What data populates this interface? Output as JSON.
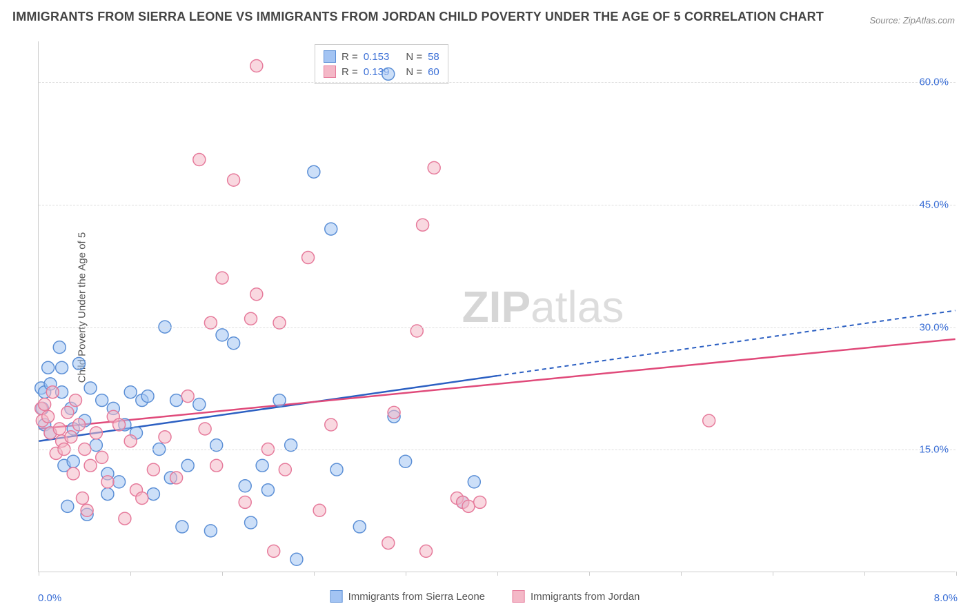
{
  "title": "IMMIGRANTS FROM SIERRA LEONE VS IMMIGRANTS FROM JORDAN CHILD POVERTY UNDER THE AGE OF 5 CORRELATION CHART",
  "source": "Source: ZipAtlas.com",
  "watermark_bold": "ZIP",
  "watermark_light": "atlas",
  "chart": {
    "type": "scatter-with-regression",
    "y_axis_label": "Child Poverty Under the Age of 5",
    "x_range": [
      0.0,
      8.0
    ],
    "y_range": [
      0.0,
      65.0
    ],
    "y_ticks": [
      {
        "val": 15.0,
        "label": "15.0%"
      },
      {
        "val": 30.0,
        "label": "30.0%"
      },
      {
        "val": 45.0,
        "label": "45.0%"
      },
      {
        "val": 60.0,
        "label": "60.0%"
      }
    ],
    "x_tick_positions": [
      0.0,
      0.8,
      1.6,
      2.4,
      3.2,
      4.0,
      4.8,
      5.6,
      6.4,
      7.2,
      8.0
    ],
    "x_labels": [
      {
        "val": 0.0,
        "label": "0.0%"
      },
      {
        "val": 8.0,
        "label": "8.0%"
      }
    ],
    "grid_color": "#dddddd",
    "background_color": "#ffffff",
    "marker_radius": 9,
    "marker_opacity": 0.55,
    "series": [
      {
        "name": "Immigrants from Sierra Leone",
        "fill": "#a3c4f3",
        "stroke": "#5b8fd6",
        "line_color": "#2b5fc2",
        "r_label": "R =",
        "r_value": "0.153",
        "n_label": "N =",
        "n_value": "58",
        "regression": {
          "x1": 0.0,
          "y1": 16.0,
          "x2": 4.0,
          "y2": 24.0,
          "x_dash_end": 8.0,
          "y_dash_end": 32.0
        },
        "points": [
          [
            0.02,
            22.5
          ],
          [
            0.03,
            20.0
          ],
          [
            0.05,
            22.0
          ],
          [
            0.05,
            18.0
          ],
          [
            0.08,
            25.0
          ],
          [
            0.1,
            23.0
          ],
          [
            0.1,
            17.0
          ],
          [
            0.18,
            27.5
          ],
          [
            0.2,
            25.0
          ],
          [
            0.2,
            22.0
          ],
          [
            0.22,
            13.0
          ],
          [
            0.25,
            8.0
          ],
          [
            0.28,
            20.0
          ],
          [
            0.3,
            17.5
          ],
          [
            0.3,
            13.5
          ],
          [
            0.35,
            25.5
          ],
          [
            0.4,
            18.5
          ],
          [
            0.42,
            7.0
          ],
          [
            0.45,
            22.5
          ],
          [
            0.5,
            15.5
          ],
          [
            0.55,
            21.0
          ],
          [
            0.6,
            9.5
          ],
          [
            0.6,
            12.0
          ],
          [
            0.65,
            20.0
          ],
          [
            0.7,
            11.0
          ],
          [
            0.75,
            18.0
          ],
          [
            0.8,
            22.0
          ],
          [
            0.85,
            17.0
          ],
          [
            0.9,
            21.0
          ],
          [
            0.95,
            21.5
          ],
          [
            1.0,
            9.5
          ],
          [
            1.05,
            15.0
          ],
          [
            1.1,
            30.0
          ],
          [
            1.15,
            11.5
          ],
          [
            1.2,
            21.0
          ],
          [
            1.25,
            5.5
          ],
          [
            1.3,
            13.0
          ],
          [
            1.4,
            20.5
          ],
          [
            1.5,
            5.0
          ],
          [
            1.55,
            15.5
          ],
          [
            1.6,
            29.0
          ],
          [
            1.7,
            28.0
          ],
          [
            1.8,
            10.5
          ],
          [
            1.85,
            6.0
          ],
          [
            1.95,
            13.0
          ],
          [
            2.0,
            10.0
          ],
          [
            2.1,
            21.0
          ],
          [
            2.2,
            15.5
          ],
          [
            2.25,
            1.5
          ],
          [
            2.4,
            49.0
          ],
          [
            2.55,
            42.0
          ],
          [
            2.6,
            12.5
          ],
          [
            2.8,
            5.5
          ],
          [
            3.05,
            61.0
          ],
          [
            3.1,
            19.0
          ],
          [
            3.2,
            13.5
          ],
          [
            3.7,
            8.5
          ],
          [
            3.8,
            11.0
          ]
        ]
      },
      {
        "name": "Immigrants from Jordan",
        "fill": "#f4b8c7",
        "stroke": "#e67a9b",
        "line_color": "#e04a7a",
        "r_label": "R =",
        "r_value": "0.139",
        "n_label": "N =",
        "n_value": "60",
        "regression": {
          "x1": 0.0,
          "y1": 17.5,
          "x2": 8.0,
          "y2": 28.5
        },
        "points": [
          [
            0.02,
            20.0
          ],
          [
            0.03,
            18.5
          ],
          [
            0.05,
            20.5
          ],
          [
            0.08,
            19.0
          ],
          [
            0.1,
            17.0
          ],
          [
            0.12,
            22.0
          ],
          [
            0.15,
            14.5
          ],
          [
            0.18,
            17.5
          ],
          [
            0.2,
            16.0
          ],
          [
            0.22,
            15.0
          ],
          [
            0.25,
            19.5
          ],
          [
            0.28,
            16.5
          ],
          [
            0.3,
            12.0
          ],
          [
            0.32,
            21.0
          ],
          [
            0.35,
            18.0
          ],
          [
            0.38,
            9.0
          ],
          [
            0.4,
            15.0
          ],
          [
            0.42,
            7.5
          ],
          [
            0.45,
            13.0
          ],
          [
            0.5,
            17.0
          ],
          [
            0.55,
            14.0
          ],
          [
            0.6,
            11.0
          ],
          [
            0.65,
            19.0
          ],
          [
            0.7,
            18.0
          ],
          [
            0.75,
            6.5
          ],
          [
            0.8,
            16.0
          ],
          [
            0.85,
            10.0
          ],
          [
            0.9,
            9.0
          ],
          [
            1.0,
            12.5
          ],
          [
            1.1,
            16.5
          ],
          [
            1.2,
            11.5
          ],
          [
            1.3,
            21.5
          ],
          [
            1.4,
            50.5
          ],
          [
            1.45,
            17.5
          ],
          [
            1.5,
            30.5
          ],
          [
            1.55,
            13.0
          ],
          [
            1.6,
            36.0
          ],
          [
            1.7,
            48.0
          ],
          [
            1.8,
            8.5
          ],
          [
            1.85,
            31.0
          ],
          [
            1.9,
            34.0
          ],
          [
            1.9,
            62.0
          ],
          [
            2.0,
            15.0
          ],
          [
            2.05,
            2.5
          ],
          [
            2.1,
            30.5
          ],
          [
            2.15,
            12.5
          ],
          [
            2.35,
            38.5
          ],
          [
            2.45,
            7.5
          ],
          [
            2.55,
            18.0
          ],
          [
            3.05,
            3.5
          ],
          [
            3.1,
            19.5
          ],
          [
            3.3,
            29.5
          ],
          [
            3.35,
            42.5
          ],
          [
            3.38,
            2.5
          ],
          [
            3.45,
            49.5
          ],
          [
            3.65,
            9.0
          ],
          [
            3.7,
            8.5
          ],
          [
            3.85,
            8.5
          ],
          [
            3.75,
            8.0
          ],
          [
            5.85,
            18.5
          ]
        ]
      }
    ]
  },
  "colors": {
    "title": "#444444",
    "axis_text": "#555555",
    "tick_value": "#3b6fd6",
    "border": "#cccccc"
  },
  "fonts": {
    "title_size": 18,
    "label_size": 15,
    "watermark_size": 64
  }
}
